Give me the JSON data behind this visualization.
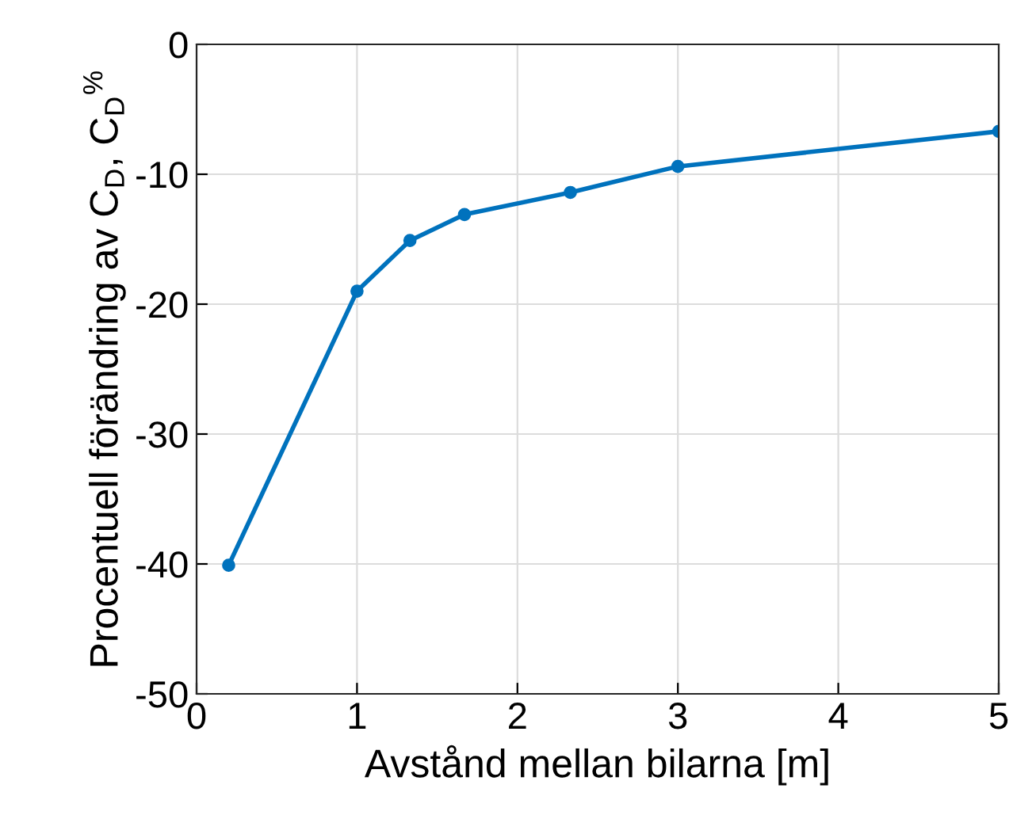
{
  "chart_data": {
    "type": "line",
    "xlabel": "Avstånd mellan bilarna [m]",
    "ylabel": "Procentuell förändring av C$_{D}$, C$_{D}$$^{%}$",
    "series": [
      {
        "color": "#0072bd",
        "x": [
          0.2,
          1,
          1.33,
          1.67,
          2.33,
          3,
          5
        ],
        "values": [
          -40.1,
          -19.0,
          -15.1,
          -13.1,
          -11.4,
          -9.4,
          -6.7
        ]
      }
    ],
    "xlim": [
      0,
      5
    ],
    "xticks": [
      0,
      1,
      2,
      3,
      4,
      5
    ],
    "ylim": [
      -50,
      0
    ],
    "yticks": [
      -50,
      -40,
      -30,
      -20,
      -10,
      0
    ],
    "grid": true,
    "marker": "circle",
    "line_style": "solid"
  }
}
